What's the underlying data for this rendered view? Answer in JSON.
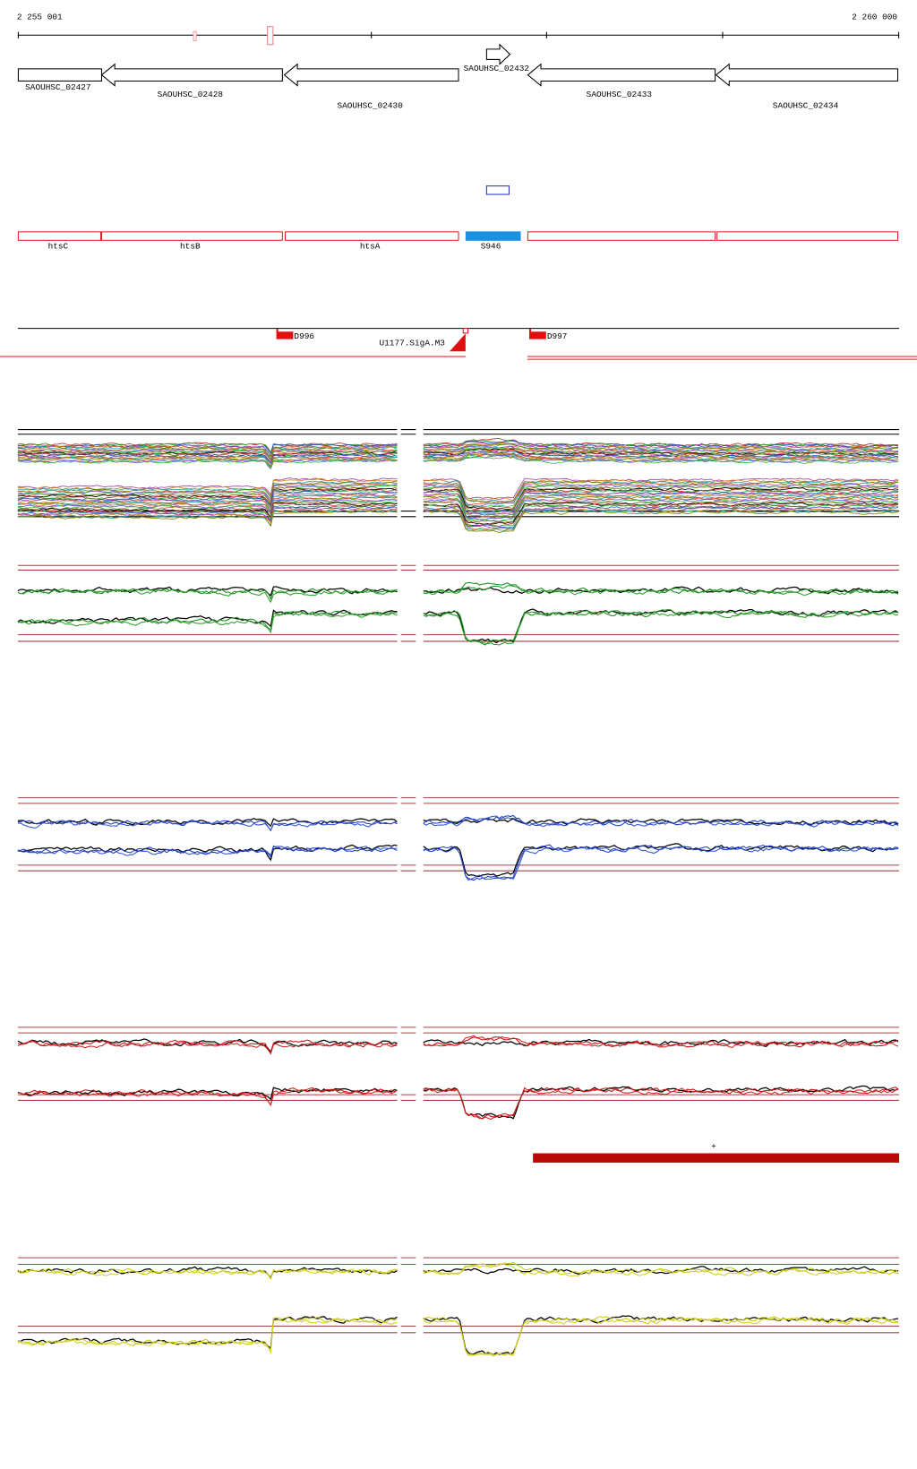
{
  "ruler": {
    "start": "2 255 001",
    "end": "2 260 000"
  },
  "genes": [
    "SAOUHSC_02427",
    "SAOUHSC_02428",
    "SAOUHSC_02430",
    "SAOUHSC_02432",
    "SAOUHSC_02433",
    "SAOUHSC_02434"
  ],
  "features": [
    "htsC",
    "htsB",
    "htsA",
    "S946"
  ],
  "elements": [
    "D996",
    "U1177.SigA.M3",
    "D997"
  ],
  "marker": "+"
}
